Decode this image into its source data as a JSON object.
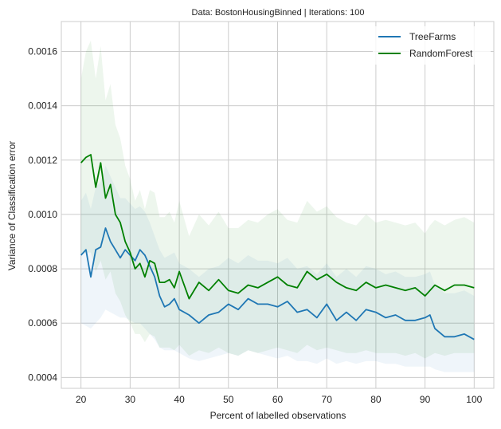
{
  "chart_data": {
    "type": "line",
    "title": "Data: BostonHousingBinned | Iterations: 100",
    "xlabel": "Percent of labelled observations",
    "ylabel": "Variance of Classification error",
    "xlim": [
      16,
      104
    ],
    "ylim": [
      0.00036,
      0.00171
    ],
    "xticks": [
      20,
      30,
      40,
      50,
      60,
      70,
      80,
      90,
      100
    ],
    "yticks": [
      0.0004,
      0.0006,
      0.0008,
      0.001,
      0.0012,
      0.0014,
      0.0016
    ],
    "ytick_labels": [
      "0.0004",
      "0.0006",
      "0.0008",
      "0.0010",
      "0.0012",
      "0.0014",
      "0.0016"
    ],
    "grid": true,
    "legend_position": "top-right",
    "x": [
      20,
      21,
      22,
      23,
      24,
      25,
      26,
      27,
      28,
      29,
      30,
      31,
      32,
      33,
      34,
      35,
      36,
      37,
      38,
      39,
      40,
      42,
      44,
      46,
      48,
      50,
      52,
      54,
      56,
      58,
      60,
      62,
      64,
      66,
      68,
      70,
      72,
      74,
      76,
      78,
      80,
      82,
      84,
      86,
      88,
      90,
      91,
      92,
      94,
      96,
      98,
      100
    ],
    "series": [
      {
        "name": "TreeFarms",
        "color": "#1f77b4",
        "values": [
          0.00085,
          0.00087,
          0.00077,
          0.00087,
          0.00088,
          0.00095,
          0.0009,
          0.00087,
          0.00084,
          0.00087,
          0.00085,
          0.00083,
          0.00087,
          0.00085,
          0.00081,
          0.00077,
          0.0007,
          0.00066,
          0.00067,
          0.00069,
          0.00065,
          0.00063,
          0.0006,
          0.00063,
          0.00064,
          0.00067,
          0.00065,
          0.00069,
          0.00067,
          0.00067,
          0.00066,
          0.00068,
          0.00064,
          0.00065,
          0.00062,
          0.00067,
          0.00061,
          0.00064,
          0.00061,
          0.00065,
          0.00064,
          0.00062,
          0.00063,
          0.00061,
          0.00061,
          0.00062,
          0.00063,
          0.00058,
          0.00055,
          0.00055,
          0.00056,
          0.00054
        ],
        "band_low": [
          0.0006,
          0.00059,
          0.00058,
          0.0006,
          0.00062,
          0.00065,
          0.00064,
          0.00063,
          0.00062,
          0.00062,
          0.00061,
          0.0006,
          0.0006,
          0.00058,
          0.00056,
          0.00054,
          0.00051,
          0.0005,
          0.0005,
          0.0005,
          0.00049,
          0.00047,
          0.00046,
          0.00047,
          0.00048,
          0.00049,
          0.00048,
          0.0005,
          0.00049,
          0.00048,
          0.00047,
          0.00048,
          0.00046,
          0.00046,
          0.00045,
          0.00047,
          0.00045,
          0.00046,
          0.00045,
          0.00046,
          0.00046,
          0.00045,
          0.00045,
          0.00044,
          0.00044,
          0.00044,
          0.00044,
          0.00043,
          0.00042,
          0.00042,
          0.00042,
          0.00042
        ],
        "band_high": [
          0.00105,
          0.00108,
          0.00102,
          0.0011,
          0.00112,
          0.00118,
          0.00114,
          0.0011,
          0.00106,
          0.00106,
          0.00104,
          0.00102,
          0.00103,
          0.00101,
          0.00097,
          0.00092,
          0.00087,
          0.00084,
          0.00085,
          0.00086,
          0.00082,
          0.0008,
          0.00077,
          0.0008,
          0.00081,
          0.00084,
          0.00082,
          0.00085,
          0.00083,
          0.00083,
          0.00082,
          0.00084,
          0.0008,
          0.00081,
          0.00078,
          0.00082,
          0.00077,
          0.0008,
          0.00077,
          0.00081,
          0.0008,
          0.00078,
          0.00079,
          0.00077,
          0.00077,
          0.00078,
          0.00079,
          0.00074,
          0.00071,
          0.00071,
          0.00072,
          0.0007
        ]
      },
      {
        "name": "RandomForest",
        "color": "#008000",
        "values": [
          0.00119,
          0.00121,
          0.00122,
          0.0011,
          0.00119,
          0.00106,
          0.00111,
          0.001,
          0.00097,
          0.0009,
          0.00086,
          0.0008,
          0.00082,
          0.00077,
          0.00083,
          0.00082,
          0.00075,
          0.00075,
          0.00076,
          0.00073,
          0.00079,
          0.00069,
          0.00075,
          0.00072,
          0.00076,
          0.00072,
          0.00071,
          0.00074,
          0.00073,
          0.00075,
          0.00077,
          0.00074,
          0.00073,
          0.00079,
          0.00076,
          0.00078,
          0.00075,
          0.00073,
          0.00072,
          0.00075,
          0.00073,
          0.00074,
          0.00073,
          0.00072,
          0.00073,
          0.0007,
          0.00072,
          0.00074,
          0.00072,
          0.00074,
          0.00074,
          0.00073
        ],
        "band_low": [
          0.00085,
          0.00086,
          0.00086,
          0.00079,
          0.00083,
          0.00076,
          0.00079,
          0.00071,
          0.00068,
          0.00063,
          0.0006,
          0.00056,
          0.00056,
          0.00053,
          0.00056,
          0.00055,
          0.00051,
          0.00051,
          0.00051,
          0.0005,
          0.00052,
          0.00048,
          0.0005,
          0.00049,
          0.00051,
          0.00049,
          0.00048,
          0.0005,
          0.00049,
          0.0005,
          0.00051,
          0.0005,
          0.00049,
          0.00052,
          0.0005,
          0.00051,
          0.0005,
          0.00049,
          0.00049,
          0.0005,
          0.00049,
          0.00049,
          0.00049,
          0.00048,
          0.00049,
          0.00047,
          0.00048,
          0.00049,
          0.00048,
          0.00049,
          0.00049,
          0.00049
        ],
        "band_high": [
          0.0015,
          0.0016,
          0.00164,
          0.0015,
          0.00162,
          0.00142,
          0.00148,
          0.00133,
          0.00128,
          0.00118,
          0.00113,
          0.00105,
          0.00109,
          0.00102,
          0.00109,
          0.00108,
          0.00099,
          0.00099,
          0.00101,
          0.00097,
          0.00105,
          0.00092,
          0.001,
          0.00096,
          0.00101,
          0.00095,
          0.00095,
          0.00098,
          0.00097,
          0.001,
          0.00102,
          0.00098,
          0.00097,
          0.00105,
          0.00101,
          0.00103,
          0.00099,
          0.00097,
          0.00096,
          0.001,
          0.00097,
          0.00098,
          0.00097,
          0.00096,
          0.00097,
          0.00093,
          0.00096,
          0.00098,
          0.00096,
          0.00098,
          0.00099,
          0.00097
        ]
      }
    ]
  }
}
